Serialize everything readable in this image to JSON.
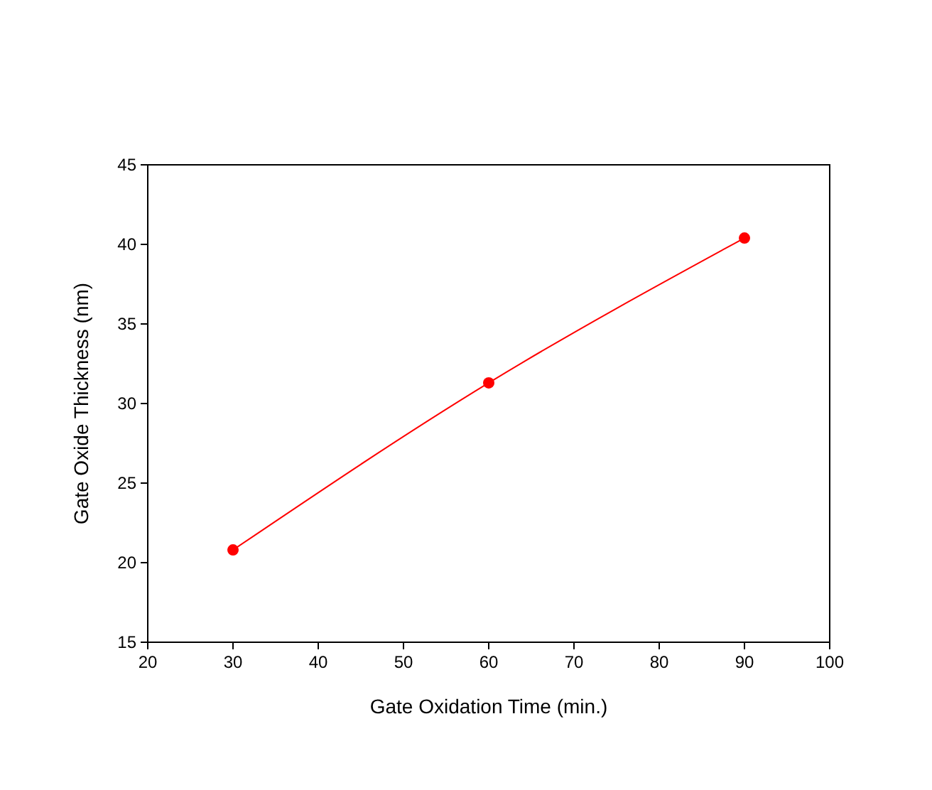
{
  "chart_data": {
    "type": "line",
    "xlabel": "Gate Oxidation Time (min.)",
    "ylabel": "Gate Oxide Thickness (nm)",
    "x": [
      30,
      60,
      90
    ],
    "series": [
      {
        "color": "#ff0000",
        "values": [
          20.8,
          31.3,
          40.4
        ]
      }
    ],
    "xlim": [
      20,
      100
    ],
    "xticks": [
      20,
      30,
      40,
      50,
      60,
      70,
      80,
      90,
      100
    ],
    "ylim": [
      15,
      45
    ],
    "yticks": [
      15,
      20,
      25,
      30,
      35,
      40,
      45
    ],
    "marker": "circle"
  }
}
